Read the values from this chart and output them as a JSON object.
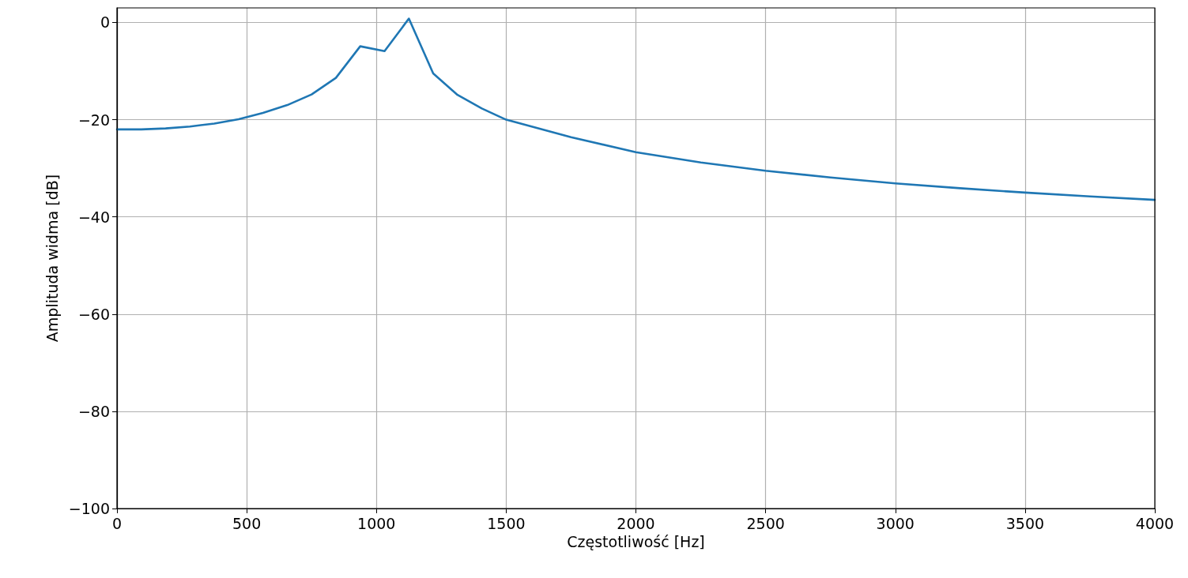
{
  "chart_data": {
    "type": "line",
    "xlabel": "Częstotliwość [Hz]",
    "ylabel": "Amplituda widma [dB]",
    "x": [
      0,
      93.75,
      187.5,
      281.25,
      375,
      468.75,
      562.5,
      656.25,
      750,
      843.75,
      937.5,
      1031.25,
      1125,
      1218.75,
      1312.5,
      1406.25,
      1500,
      1750,
      2000,
      2250,
      2500,
      2750,
      3000,
      3250,
      3500,
      3750,
      4000
    ],
    "series": [
      {
        "color": "#1f77b4",
        "values": [
          -22.0,
          -22.0,
          -21.8,
          -21.4,
          -20.8,
          -19.9,
          -18.6,
          -17.0,
          -14.8,
          -11.4,
          -4.9,
          -5.9,
          0.8,
          -10.5,
          -14.9,
          -17.7,
          -20.0,
          -23.6,
          -26.7,
          -28.8,
          -30.5,
          -31.9,
          -33.1,
          -34.1,
          -35.0,
          -35.8,
          -36.5
        ]
      }
    ],
    "xlim": [
      0,
      4000
    ],
    "xticks": [
      0,
      500,
      1000,
      1500,
      2000,
      2500,
      3000,
      3500,
      4000
    ],
    "ylim": [
      -100,
      3
    ],
    "yticks": [
      -100,
      -80,
      -60,
      -40,
      -20,
      0
    ],
    "grid": true,
    "marker": "none",
    "line_style": "solid"
  }
}
